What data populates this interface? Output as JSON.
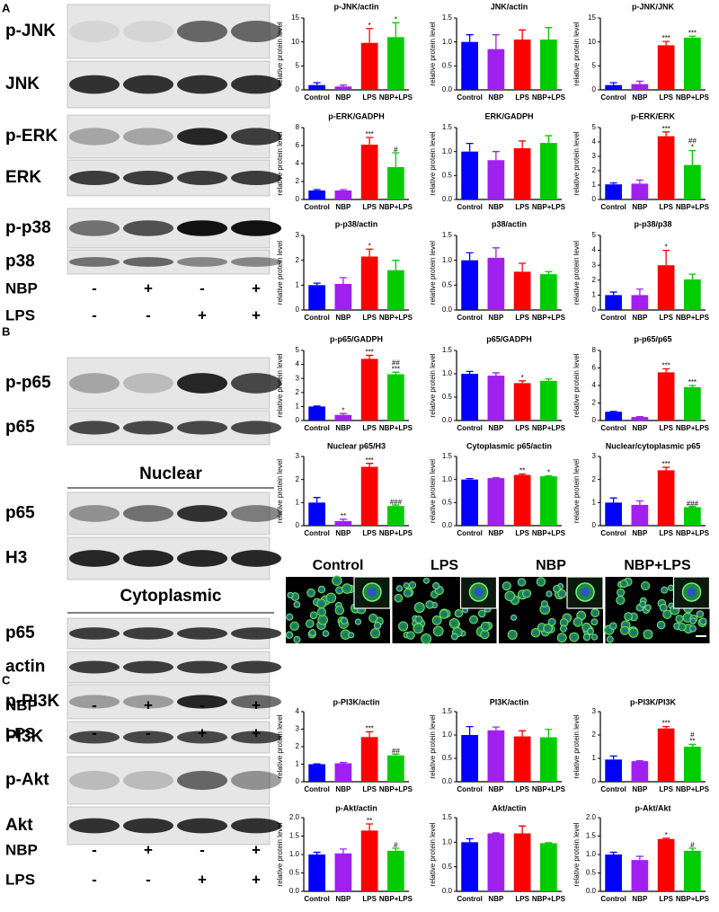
{
  "blots": [
    {
      "panel": "A",
      "rows": [
        "p-JNK",
        "JNK",
        "p-ERK",
        "ERK",
        "p-p38",
        "p38"
      ],
      "treatments": [
        {
          "name": "NBP",
          "signs": [
            "-",
            "+",
            "-",
            "+"
          ]
        },
        {
          "name": "LPS",
          "signs": [
            "-",
            "-",
            "+",
            "+"
          ]
        }
      ]
    },
    {
      "panel": "B",
      "rows": [
        "p-p65",
        "p65"
      ],
      "sections": [
        {
          "heading": "Nuclear",
          "rows": [
            "p65",
            "H3"
          ]
        },
        {
          "heading": "Cytoplasmic",
          "rows": [
            "p65",
            "actin"
          ]
        }
      ],
      "treatments": [
        {
          "name": "NBP",
          "signs": [
            "-",
            "+",
            "-",
            "+"
          ]
        },
        {
          "name": "LPS",
          "signs": [
            "-",
            "-",
            "+",
            "+"
          ]
        }
      ]
    },
    {
      "panel": "C",
      "rows": [
        "p-PI3K",
        "PI3K",
        "p-Akt",
        "Akt"
      ],
      "treatments": [
        {
          "name": "NBP",
          "signs": [
            "-",
            "+",
            "-",
            "+"
          ]
        },
        {
          "name": "LPS",
          "signs": [
            "-",
            "-",
            "+",
            "+"
          ]
        }
      ]
    }
  ],
  "micrographs": {
    "labels": [
      "Control",
      "LPS",
      "NBP",
      "NBP+LPS"
    ]
  },
  "chart_data": [
    {
      "type": "bar",
      "title": "p-JNK/actin",
      "ylabel": "relative protein level",
      "categories": [
        "Control",
        "NBP",
        "LPS",
        "NBP+LPS"
      ],
      "colors": [
        "#0000ff",
        "#a020f0",
        "#ff0000",
        "#00cc00"
      ],
      "values": [
        1.0,
        0.7,
        9.8,
        11.0
      ],
      "errors": [
        0.5,
        0.3,
        3.0,
        3.0
      ],
      "annotations": [
        [],
        [],
        [
          "*"
        ],
        [
          "*"
        ]
      ],
      "ylim": [
        0,
        15
      ],
      "yticks": [
        0,
        5,
        10,
        15
      ]
    },
    {
      "type": "bar",
      "title": "JNK/actin",
      "ylabel": "relative protein level",
      "categories": [
        "Control",
        "NBP",
        "LPS",
        "NBP+LPS"
      ],
      "colors": [
        "#0000ff",
        "#a020f0",
        "#ff0000",
        "#00cc00"
      ],
      "values": [
        1.0,
        0.85,
        1.05,
        1.05
      ],
      "errors": [
        0.15,
        0.3,
        0.2,
        0.25
      ],
      "annotations": [
        [],
        [],
        [],
        []
      ],
      "ylim": [
        0,
        1.5
      ],
      "yticks": [
        {
          "value": 0,
          "label": "0.0"
        },
        0.5,
        {
          "value": 1,
          "label": "1.0"
        },
        1.5
      ]
    },
    {
      "type": "bar",
      "title": "p-JNK/JNK",
      "ylabel": "relative protein level",
      "categories": [
        "Control",
        "NBP",
        "LPS",
        "NBP+LPS"
      ],
      "colors": [
        "#0000ff",
        "#a020f0",
        "#ff0000",
        "#00cc00"
      ],
      "values": [
        1.0,
        1.2,
        9.3,
        10.9
      ],
      "errors": [
        0.5,
        0.6,
        0.8,
        0.3
      ],
      "annotations": [
        [],
        [],
        [
          "***"
        ],
        [
          "***"
        ]
      ],
      "ylim": [
        0,
        15
      ],
      "yticks": [
        0,
        5,
        10,
        15
      ]
    },
    {
      "type": "bar",
      "title": "p-ERK/GADPH",
      "ylabel": "relative protein level",
      "categories": [
        "Control",
        "NBP",
        "LPS",
        "NBP+LPS"
      ],
      "colors": [
        "#0000ff",
        "#a020f0",
        "#ff0000",
        "#00cc00"
      ],
      "values": [
        1.0,
        1.0,
        6.1,
        3.6
      ],
      "errors": [
        0.1,
        0.1,
        0.8,
        1.6
      ],
      "annotations": [
        [],
        [],
        [
          "***"
        ],
        [
          "#"
        ]
      ],
      "ylim": [
        0,
        8
      ],
      "yticks": [
        0,
        2,
        4,
        6,
        8
      ]
    },
    {
      "type": "bar",
      "title": "ERK/GADPH",
      "ylabel": "relative protein level",
      "categories": [
        "Control",
        "NBP",
        "LPS",
        "NBP+LPS"
      ],
      "colors": [
        "#0000ff",
        "#a020f0",
        "#ff0000",
        "#00cc00"
      ],
      "values": [
        1.0,
        0.82,
        1.07,
        1.18
      ],
      "errors": [
        0.17,
        0.18,
        0.15,
        0.15
      ],
      "annotations": [
        [],
        [],
        [],
        []
      ],
      "ylim": [
        0,
        1.5
      ],
      "yticks": [
        {
          "value": 0,
          "label": "0.0"
        },
        0.5,
        {
          "value": 1,
          "label": "1.0"
        },
        1.5
      ]
    },
    {
      "type": "bar",
      "title": "p-ERK/ERK",
      "ylabel": "relative protein level",
      "categories": [
        "Control",
        "NBP",
        "LPS",
        "NBP+LPS"
      ],
      "colors": [
        "#0000ff",
        "#a020f0",
        "#ff0000",
        "#00cc00"
      ],
      "values": [
        1.05,
        1.1,
        4.4,
        2.4
      ],
      "errors": [
        0.1,
        0.25,
        0.3,
        1.0
      ],
      "annotations": [
        [],
        [],
        [
          "***"
        ],
        [
          "##",
          "*"
        ]
      ],
      "ylim": [
        0,
        5
      ],
      "yticks": [
        0,
        1,
        2,
        3,
        4,
        5
      ]
    },
    {
      "type": "bar",
      "title": "p-p38/actin",
      "ylabel": "relative protein level",
      "categories": [
        "Control",
        "NBP",
        "LPS",
        "NBP+LPS"
      ],
      "colors": [
        "#0000ff",
        "#a020f0",
        "#ff0000",
        "#00cc00"
      ],
      "values": [
        1.0,
        1.05,
        2.15,
        1.6
      ],
      "errors": [
        0.08,
        0.25,
        0.3,
        0.4
      ],
      "annotations": [
        [],
        [],
        [
          "*"
        ],
        []
      ],
      "ylim": [
        0,
        3
      ],
      "yticks": [
        0,
        1,
        2,
        3
      ]
    },
    {
      "type": "bar",
      "title": "p38/actin",
      "ylabel": "relative protein level",
      "categories": [
        "Control",
        "NBP",
        "LPS",
        "NBP+LPS"
      ],
      "colors": [
        "#0000ff",
        "#a020f0",
        "#ff0000",
        "#00cc00"
      ],
      "values": [
        1.0,
        1.05,
        0.77,
        0.72
      ],
      "errors": [
        0.15,
        0.2,
        0.17,
        0.05
      ],
      "annotations": [
        [],
        [],
        [],
        []
      ],
      "ylim": [
        0,
        1.5
      ],
      "yticks": [
        {
          "value": 0,
          "label": "0.0"
        },
        0.5,
        {
          "value": 1,
          "label": "1.0"
        },
        1.5
      ]
    },
    {
      "type": "bar",
      "title": "p-p38/p38",
      "ylabel": "relative protein level",
      "categories": [
        "Control",
        "NBP",
        "LPS",
        "NBP+LPS"
      ],
      "colors": [
        "#0000ff",
        "#a020f0",
        "#ff0000",
        "#00cc00"
      ],
      "values": [
        1.0,
        1.0,
        3.0,
        2.05
      ],
      "errors": [
        0.2,
        0.4,
        1.0,
        0.35
      ],
      "annotations": [
        [],
        [],
        [
          "*"
        ],
        []
      ],
      "ylim": [
        0,
        5
      ],
      "yticks": [
        0,
        1,
        2,
        3,
        4,
        5
      ]
    },
    {
      "type": "bar",
      "title": "p-p65/GADPH",
      "ylabel": "relative protein level",
      "categories": [
        "Control",
        "NBP",
        "LPS",
        "NBP+LPS"
      ],
      "colors": [
        "#0000ff",
        "#a020f0",
        "#ff0000",
        "#00cc00"
      ],
      "values": [
        1.0,
        0.4,
        4.4,
        3.3
      ],
      "errors": [
        0.03,
        0.1,
        0.25,
        0.15
      ],
      "annotations": [
        [],
        [
          "*"
        ],
        [
          "***"
        ],
        [
          "##",
          "***"
        ]
      ],
      "ylim": [
        0,
        5
      ],
      "yticks": [
        0,
        1,
        2,
        3,
        4,
        5
      ]
    },
    {
      "type": "bar",
      "title": "p65/GADPH",
      "ylabel": "relative protein level",
      "categories": [
        "Control",
        "NBP",
        "LPS",
        "NBP+LPS"
      ],
      "colors": [
        "#0000ff",
        "#a020f0",
        "#ff0000",
        "#00cc00"
      ],
      "values": [
        1.0,
        0.96,
        0.8,
        0.85
      ],
      "errors": [
        0.05,
        0.06,
        0.05,
        0.04
      ],
      "annotations": [
        [],
        [],
        [
          "*"
        ],
        []
      ],
      "ylim": [
        0,
        1.5
      ],
      "yticks": [
        {
          "value": 0,
          "label": "0.0"
        },
        0.5,
        {
          "value": 1,
          "label": "1.0"
        },
        1.5
      ]
    },
    {
      "type": "bar",
      "title": "p-p65/p65",
      "ylabel": "relative protein level",
      "categories": [
        "Control",
        "NBP",
        "LPS",
        "NBP+LPS"
      ],
      "colors": [
        "#0000ff",
        "#a020f0",
        "#ff0000",
        "#00cc00"
      ],
      "values": [
        1.0,
        0.4,
        5.5,
        3.8
      ],
      "errors": [
        0.03,
        0.05,
        0.4,
        0.2
      ],
      "annotations": [
        [],
        [],
        [
          "***"
        ],
        [
          "***"
        ]
      ],
      "ylim": [
        0,
        8
      ],
      "yticks": [
        0,
        2,
        4,
        6,
        8
      ]
    },
    {
      "type": "bar",
      "title": "Nuclear p65/H3",
      "ylabel": "relative protein level",
      "categories": [
        "Control",
        "NBP",
        "LPS",
        "NBP+LPS"
      ],
      "colors": [
        "#0000ff",
        "#a020f0",
        "#ff0000",
        "#00cc00"
      ],
      "values": [
        1.0,
        0.2,
        2.55,
        0.85
      ],
      "errors": [
        0.22,
        0.08,
        0.15,
        0.04
      ],
      "annotations": [
        [],
        [
          "**"
        ],
        [
          "***"
        ],
        [
          "###"
        ]
      ],
      "ylim": [
        0,
        3
      ],
      "yticks": [
        0,
        1,
        2,
        3
      ]
    },
    {
      "type": "bar",
      "title": "Cytoplasmic p65/actin",
      "ylabel": "relative protein level",
      "categories": [
        "Control",
        "NBP",
        "LPS",
        "NBP+LPS"
      ],
      "colors": [
        "#0000ff",
        "#a020f0",
        "#ff0000",
        "#00cc00"
      ],
      "values": [
        1.0,
        1.03,
        1.1,
        1.07
      ],
      "errors": [
        0.02,
        0.01,
        0.02,
        0.01
      ],
      "annotations": [
        [],
        [],
        [
          "**"
        ],
        [
          "*"
        ]
      ],
      "ylim": [
        0,
        1.5
      ],
      "yticks": [
        {
          "value": 0,
          "label": "0.0"
        },
        0.5,
        {
          "value": 1,
          "label": "1.0"
        },
        1.5
      ]
    },
    {
      "type": "bar",
      "title": "Nuclear/cytoplasmic p65",
      "ylabel": "relative protein level",
      "categories": [
        "Control",
        "NBP",
        "LPS",
        "NBP+LPS"
      ],
      "colors": [
        "#0000ff",
        "#a020f0",
        "#ff0000",
        "#00cc00"
      ],
      "values": [
        1.0,
        0.9,
        2.4,
        0.8
      ],
      "errors": [
        0.2,
        0.17,
        0.13,
        0.03
      ],
      "annotations": [
        [],
        [],
        [
          "***"
        ],
        [
          "###"
        ]
      ],
      "ylim": [
        0,
        3
      ],
      "yticks": [
        0,
        1,
        2,
        3
      ]
    },
    {
      "type": "bar",
      "title": "p-PI3K/actin",
      "ylabel": "relative protein level",
      "categories": [
        "Control",
        "NBP",
        "LPS",
        "NBP+LPS"
      ],
      "colors": [
        "#0000ff",
        "#a020f0",
        "#ff0000",
        "#00cc00"
      ],
      "values": [
        1.0,
        1.05,
        2.55,
        1.5
      ],
      "errors": [
        0.02,
        0.05,
        0.3,
        0.07
      ],
      "annotations": [
        [],
        [],
        [
          "***"
        ],
        [
          "##"
        ]
      ],
      "ylim": [
        0,
        4
      ],
      "yticks": [
        0,
        1,
        2,
        3,
        4
      ]
    },
    {
      "type": "bar",
      "title": "PI3K/actin",
      "ylabel": "relative protein level",
      "categories": [
        "Control",
        "NBP",
        "LPS",
        "NBP+LPS"
      ],
      "colors": [
        "#0000ff",
        "#a020f0",
        "#ff0000",
        "#00cc00"
      ],
      "values": [
        1.0,
        1.1,
        0.97,
        0.95
      ],
      "errors": [
        0.18,
        0.07,
        0.12,
        0.17
      ],
      "annotations": [
        [],
        [],
        [],
        []
      ],
      "ylim": [
        0,
        1.5
      ],
      "yticks": [
        {
          "value": 0,
          "label": "0.0"
        },
        0.5,
        {
          "value": 1,
          "label": "1.0"
        },
        1.5
      ]
    },
    {
      "type": "bar",
      "title": "p-PI3K/PI3K",
      "ylabel": "relative protein level",
      "categories": [
        "Control",
        "NBP",
        "LPS",
        "NBP+LPS"
      ],
      "colors": [
        "#0000ff",
        "#a020f0",
        "#ff0000",
        "#00cc00"
      ],
      "values": [
        0.95,
        0.88,
        2.28,
        1.5
      ],
      "errors": [
        0.15,
        0.02,
        0.08,
        0.1
      ],
      "annotations": [
        [],
        [],
        [
          "***"
        ],
        [
          "#",
          "**"
        ]
      ],
      "ylim": [
        0,
        3
      ],
      "yticks": [
        0,
        1,
        2,
        3
      ]
    },
    {
      "type": "bar",
      "title": "p-Akt/actin",
      "ylabel": "relative protein level",
      "categories": [
        "Control",
        "NBP",
        "LPS",
        "NBP+LPS"
      ],
      "colors": [
        "#0000ff",
        "#a020f0",
        "#ff0000",
        "#00cc00"
      ],
      "values": [
        1.0,
        1.03,
        1.65,
        1.1
      ],
      "errors": [
        0.06,
        0.12,
        0.18,
        0.07
      ],
      "annotations": [
        [],
        [],
        [
          "**"
        ],
        [
          "#"
        ]
      ],
      "ylim": [
        0,
        2
      ],
      "yticks": [
        {
          "value": 0,
          "label": "0.0"
        },
        0.5,
        {
          "value": 1,
          "label": "1.0"
        },
        1.5,
        {
          "value": 2,
          "label": "2.0"
        }
      ]
    },
    {
      "type": "bar",
      "title": "Akt/actin",
      "ylabel": "relative protein level",
      "categories": [
        "Control",
        "NBP",
        "LPS",
        "NBP+LPS"
      ],
      "colors": [
        "#0000ff",
        "#a020f0",
        "#ff0000",
        "#00cc00"
      ],
      "values": [
        1.0,
        1.18,
        1.18,
        0.98
      ],
      "errors": [
        0.07,
        0.01,
        0.15,
        0.01
      ],
      "annotations": [
        [],
        [],
        [],
        []
      ],
      "ylim": [
        0,
        1.5
      ],
      "yticks": [
        {
          "value": 0,
          "label": "0.0"
        },
        0.5,
        {
          "value": 1,
          "label": "1.0"
        },
        1.5
      ]
    },
    {
      "type": "bar",
      "title": "p-Akt/Akt",
      "ylabel": "relative protein level",
      "categories": [
        "Control",
        "NBP",
        "LPS",
        "NBP+LPS"
      ],
      "colors": [
        "#0000ff",
        "#a020f0",
        "#ff0000",
        "#00cc00"
      ],
      "values": [
        1.0,
        0.85,
        1.42,
        1.1
      ],
      "errors": [
        0.06,
        0.1,
        0.02,
        0.07
      ],
      "annotations": [
        [],
        [],
        [
          "*"
        ],
        [
          "#"
        ]
      ],
      "ylim": [
        0,
        2
      ],
      "yticks": [
        {
          "value": 0,
          "label": "0.0"
        },
        0.5,
        {
          "value": 1,
          "label": "1.0"
        },
        1.5,
        {
          "value": 2,
          "label": "2.0"
        }
      ]
    }
  ]
}
